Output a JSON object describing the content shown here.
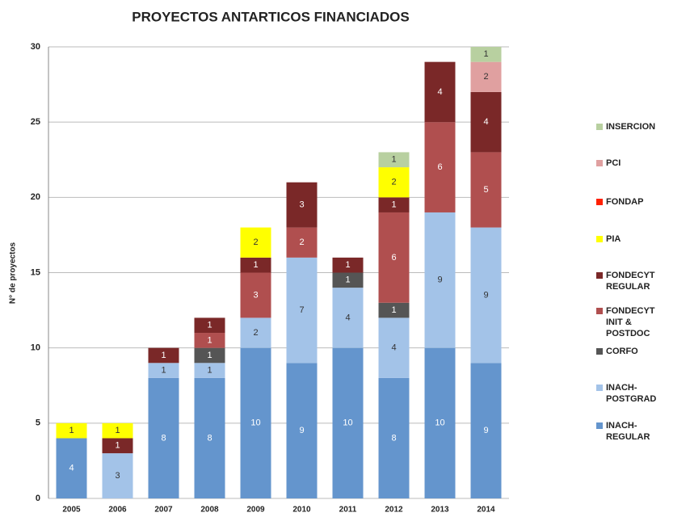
{
  "chart_data": {
    "type": "bar",
    "stacked": true,
    "title": "PROYECTOS ANTARTICOS FINANCIADOS",
    "y_label": "N° de proyectos",
    "categories": [
      "2005",
      "2006",
      "2007",
      "2008",
      "2009",
      "2010",
      "2011",
      "2012",
      "2013",
      "2014"
    ],
    "series": [
      {
        "name": "INACH-REGULAR",
        "color": "#6495cd",
        "values": [
          4,
          0,
          8,
          8,
          10,
          9,
          10,
          8,
          10,
          9
        ]
      },
      {
        "name": "INACH-POSTGRAD",
        "color": "#a3c3e8",
        "values": [
          0,
          3,
          1,
          1,
          2,
          7,
          4,
          4,
          9,
          9
        ]
      },
      {
        "name": "CORFO",
        "color": "#555555",
        "values": [
          0,
          0,
          0,
          1,
          0,
          0,
          1,
          1,
          0,
          0
        ]
      },
      {
        "name": "FONDECYT INIT & POSTDOC",
        "color": "#b04f4f",
        "values": [
          0,
          0,
          0,
          1,
          3,
          2,
          0,
          6,
          6,
          5
        ]
      },
      {
        "name": "FONDECYT REGULAR",
        "color": "#7a2828",
        "values": [
          0,
          1,
          1,
          1,
          1,
          3,
          1,
          1,
          4,
          4
        ]
      },
      {
        "name": "PIA",
        "color": "#ffff00",
        "values": [
          1,
          1,
          0,
          0,
          2,
          0,
          0,
          2,
          0,
          0
        ]
      },
      {
        "name": "FONDAP",
        "color": "#ff2000",
        "values": [
          0,
          0,
          0,
          0,
          0,
          0,
          0,
          0,
          0,
          0
        ]
      },
      {
        "name": "PCI",
        "color": "#e0a0a0",
        "values": [
          0,
          0,
          0,
          0,
          0,
          0,
          0,
          0,
          0,
          2
        ]
      },
      {
        "name": "INSERCION",
        "color": "#b8d0a0",
        "values": [
          0,
          0,
          0,
          0,
          0,
          0,
          0,
          1,
          0,
          1
        ]
      }
    ],
    "ylim": [
      0,
      30
    ],
    "yticks": [
      0,
      5,
      10,
      15,
      20,
      25,
      30
    ],
    "grid": true,
    "legend": "right"
  }
}
